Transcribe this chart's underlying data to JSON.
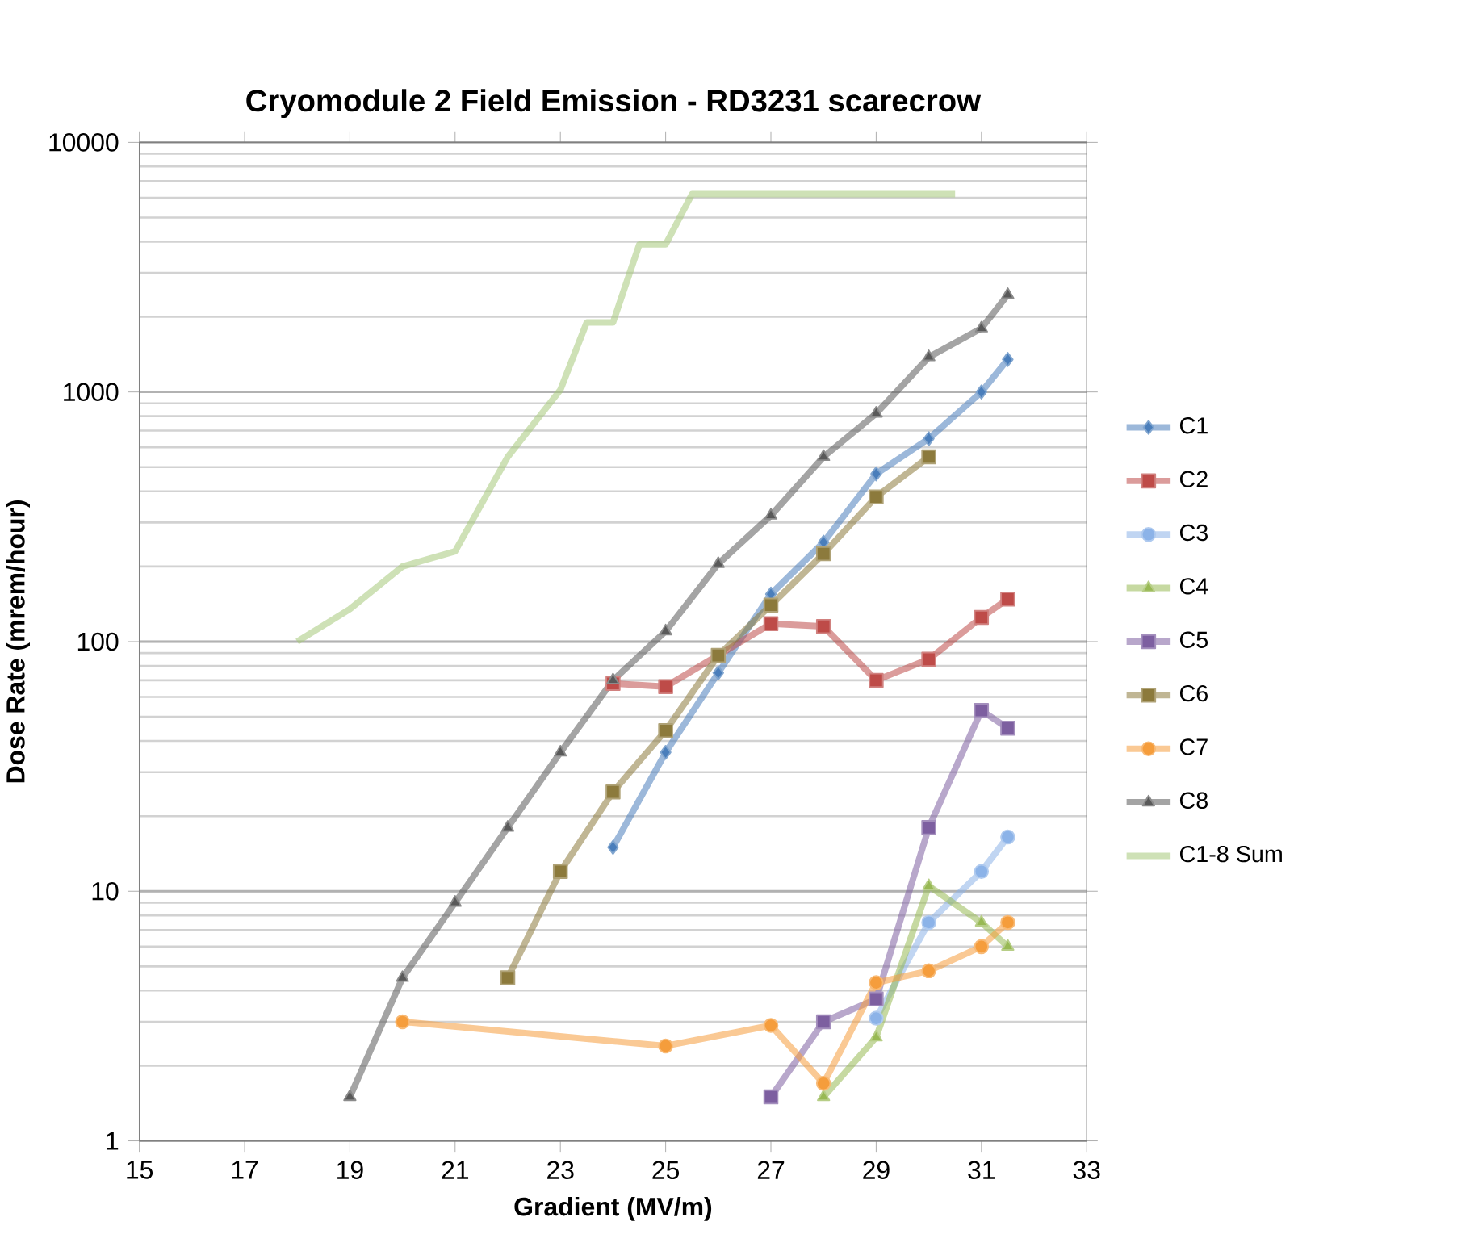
{
  "chart_data": {
    "type": "line",
    "title": "Cryomodule 2 Field Emission - RD3231 scarecrow",
    "xlabel": "Gradient (MV/m)",
    "ylabel": "Dose Rate (mrem/hour)",
    "log": "y",
    "grid": "y",
    "legend": "right",
    "xlim": [
      15,
      33
    ],
    "xticks": [
      15,
      17,
      19,
      21,
      23,
      25,
      27,
      29,
      31,
      33
    ],
    "ylim": [
      1,
      10000
    ],
    "yticks": [
      1,
      10,
      100,
      1000,
      10000
    ],
    "series": [
      {
        "name": "C1",
        "color": "#4a7ebb",
        "marker": "diamond",
        "x": [
          24,
          25,
          26,
          27,
          28,
          29,
          30,
          31,
          31.5
        ],
        "values": [
          15,
          36,
          75,
          155,
          250,
          470,
          650,
          1000,
          1350
        ]
      },
      {
        "name": "C2",
        "color": "#be4b48",
        "marker": "square",
        "x": [
          24,
          25,
          27,
          28,
          29,
          30,
          31,
          31.5
        ],
        "values": [
          68,
          66,
          118,
          115,
          70,
          85,
          125,
          148
        ]
      },
      {
        "name": "C3",
        "color": "#8cb3e8",
        "marker": "circle",
        "x": [
          29,
          30,
          31,
          31.5
        ],
        "values": [
          3.1,
          7.5,
          12,
          16.5
        ]
      },
      {
        "name": "C4",
        "color": "#98b954",
        "marker": "triangle",
        "x": [
          28,
          29,
          30,
          31,
          31.5
        ],
        "values": [
          1.5,
          2.6,
          10.5,
          7.5,
          6
        ]
      },
      {
        "name": "C5",
        "color": "#7d5fa0",
        "marker": "square",
        "x": [
          27,
          28,
          29,
          30,
          31,
          31.5
        ],
        "values": [
          1.5,
          3,
          3.7,
          18,
          53,
          45
        ]
      },
      {
        "name": "C6",
        "color": "#8c7a3c",
        "marker": "square",
        "x": [
          22,
          23,
          24,
          25,
          26,
          27,
          28,
          29,
          30
        ],
        "values": [
          4.5,
          12,
          25,
          44,
          88,
          140,
          225,
          380,
          550
        ]
      },
      {
        "name": "C7",
        "color": "#f59d3c",
        "marker": "circle",
        "x": [
          20,
          25,
          27,
          28,
          29,
          30,
          31,
          31.5
        ],
        "values": [
          3,
          2.4,
          2.9,
          1.7,
          4.3,
          4.8,
          6,
          7.5
        ]
      },
      {
        "name": "C8",
        "color": "#595959",
        "marker": "triangle",
        "x": [
          19,
          20,
          21,
          22,
          23,
          24,
          25,
          26,
          27,
          28,
          29,
          30,
          31,
          31.5
        ],
        "values": [
          1.5,
          4.5,
          9,
          18,
          36,
          70,
          110,
          205,
          320,
          550,
          820,
          1380,
          1800,
          2450
        ]
      },
      {
        "name": "C1-8 Sum",
        "color": "#a6c97a",
        "marker": "none",
        "x": [
          18,
          19,
          20,
          21,
          22,
          23,
          23.5,
          24,
          24.5,
          25,
          25.5,
          26,
          26.5,
          27,
          27.5,
          28,
          28.5,
          29,
          29.5,
          30,
          30.5
        ],
        "values": [
          100,
          135,
          200,
          230,
          550,
          1020,
          1900,
          1900,
          3900,
          3900,
          6200,
          6200,
          6200,
          6200,
          6200,
          6200,
          6200,
          6200,
          6200,
          6200,
          6200
        ]
      }
    ]
  }
}
